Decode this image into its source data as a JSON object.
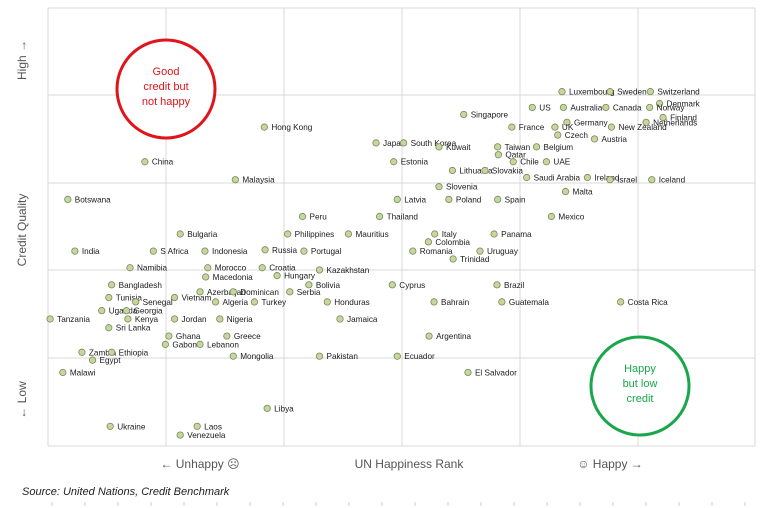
{
  "chart_data": {
    "type": "scatter",
    "xlabel": "UN Happiness Rank",
    "ylabel": "Credit Quality",
    "x_tick_labels": {
      "left": "← Unhappy ☹",
      "right": "☺ Happy →"
    },
    "y_tick_labels": {
      "top": "High →",
      "bottom": "← Low"
    },
    "xlim": [
      0,
      100
    ],
    "ylim": [
      0,
      100
    ],
    "grid": true,
    "annotations": [
      {
        "text": "Good credit but not happy",
        "lines": [
          "Good",
          "credit but",
          "not happy"
        ],
        "color": "#e0141b"
      },
      {
        "text": "Happy but low credit",
        "lines": [
          "Happy",
          "but low",
          "credit"
        ],
        "color": "#1aa64a"
      }
    ],
    "points": [
      {
        "label": "Luxembourg",
        "x": 72.7,
        "y": 80.9
      },
      {
        "label": "Sweden",
        "x": 79.5,
        "y": 80.9
      },
      {
        "label": "Switzerland",
        "x": 85.2,
        "y": 80.9
      },
      {
        "label": "Denmark",
        "x": 86.5,
        "y": 78.2
      },
      {
        "label": "US",
        "x": 68.5,
        "y": 77.3
      },
      {
        "label": "Australia",
        "x": 72.9,
        "y": 77.3
      },
      {
        "label": "Canada",
        "x": 78.9,
        "y": 77.3
      },
      {
        "label": "Norway",
        "x": 85.1,
        "y": 77.3
      },
      {
        "label": "Singapore",
        "x": 58.8,
        "y": 75.7
      },
      {
        "label": "Germany",
        "x": 73.4,
        "y": 73.9
      },
      {
        "label": "Netherlands",
        "x": 84.6,
        "y": 73.9
      },
      {
        "label": "Finland",
        "x": 87.0,
        "y": 75.0
      },
      {
        "label": "Hong Kong",
        "x": 30.6,
        "y": 72.8
      },
      {
        "label": "France",
        "x": 65.6,
        "y": 72.8
      },
      {
        "label": "UK",
        "x": 71.7,
        "y": 72.8
      },
      {
        "label": "New Zealand",
        "x": 79.7,
        "y": 72.8
      },
      {
        "label": "Czech",
        "x": 72.1,
        "y": 71.0
      },
      {
        "label": "Japan",
        "x": 46.4,
        "y": 69.2
      },
      {
        "label": "South Korea",
        "x": 50.3,
        "y": 69.2
      },
      {
        "label": "Austria",
        "x": 77.3,
        "y": 70.1
      },
      {
        "label": "Kuwait",
        "x": 55.3,
        "y": 68.3
      },
      {
        "label": "Taiwan",
        "x": 63.6,
        "y": 68.3
      },
      {
        "label": "Belgium",
        "x": 69.1,
        "y": 68.3
      },
      {
        "label": "China",
        "x": 13.7,
        "y": 64.9
      },
      {
        "label": "Estonia",
        "x": 48.9,
        "y": 64.9
      },
      {
        "label": "Qatar",
        "x": 63.7,
        "y": 66.5
      },
      {
        "label": "Chile",
        "x": 65.8,
        "y": 64.9
      },
      {
        "label": "UAE",
        "x": 70.5,
        "y": 64.9
      },
      {
        "label": "Lithuania",
        "x": 57.2,
        "y": 62.9
      },
      {
        "label": "Slovakia",
        "x": 61.8,
        "y": 62.9
      },
      {
        "label": "Saudi Arabia",
        "x": 67.7,
        "y": 61.3
      },
      {
        "label": "Ireland",
        "x": 76.3,
        "y": 61.3
      },
      {
        "label": "Malaysia",
        "x": 26.5,
        "y": 60.8
      },
      {
        "label": "Slovenia",
        "x": 55.3,
        "y": 59.2
      },
      {
        "label": "Israel",
        "x": 79.5,
        "y": 60.8
      },
      {
        "label": "Iceland",
        "x": 85.4,
        "y": 60.8
      },
      {
        "label": "Malta",
        "x": 73.2,
        "y": 58.1
      },
      {
        "label": "Botswana",
        "x": 2.8,
        "y": 56.3
      },
      {
        "label": "Latvia",
        "x": 49.4,
        "y": 56.3
      },
      {
        "label": "Poland",
        "x": 56.7,
        "y": 56.3
      },
      {
        "label": "Spain",
        "x": 63.6,
        "y": 56.3
      },
      {
        "label": "Peru",
        "x": 36.0,
        "y": 52.4
      },
      {
        "label": "Thailand",
        "x": 46.9,
        "y": 52.4
      },
      {
        "label": "Mexico",
        "x": 71.2,
        "y": 52.4
      },
      {
        "label": "Bulgaria",
        "x": 18.7,
        "y": 48.4
      },
      {
        "label": "Philippines",
        "x": 33.9,
        "y": 48.4
      },
      {
        "label": "Mauritius",
        "x": 42.5,
        "y": 48.4
      },
      {
        "label": "Italy",
        "x": 54.7,
        "y": 48.4
      },
      {
        "label": "Panama",
        "x": 63.1,
        "y": 48.4
      },
      {
        "label": "Colombia",
        "x": 53.8,
        "y": 46.6
      },
      {
        "label": "India",
        "x": 3.8,
        "y": 44.5
      },
      {
        "label": "S Africa",
        "x": 14.9,
        "y": 44.5
      },
      {
        "label": "Indonesia",
        "x": 22.2,
        "y": 44.5
      },
      {
        "label": "Russia",
        "x": 30.7,
        "y": 44.8
      },
      {
        "label": "Portugal",
        "x": 36.2,
        "y": 44.5
      },
      {
        "label": "Romania",
        "x": 51.6,
        "y": 44.5
      },
      {
        "label": "Uruguay",
        "x": 61.1,
        "y": 44.5
      },
      {
        "label": "Trinidad",
        "x": 57.3,
        "y": 42.7
      },
      {
        "label": "Namibia",
        "x": 11.6,
        "y": 40.7
      },
      {
        "label": "Morocco",
        "x": 22.6,
        "y": 40.7
      },
      {
        "label": "Croatia",
        "x": 30.3,
        "y": 40.7
      },
      {
        "label": "Kazakhstan",
        "x": 38.4,
        "y": 40.2
      },
      {
        "label": "Hungary",
        "x": 32.4,
        "y": 38.9
      },
      {
        "label": "Macedonia",
        "x": 22.3,
        "y": 38.6
      },
      {
        "label": "Bangladesh",
        "x": 9.0,
        "y": 36.8
      },
      {
        "label": "Azerbaijan",
        "x": 21.5,
        "y": 35.2
      },
      {
        "label": "Bolivia",
        "x": 36.9,
        "y": 36.8
      },
      {
        "label": "Cyprus",
        "x": 48.7,
        "y": 36.8
      },
      {
        "label": "Brazil",
        "x": 63.5,
        "y": 36.8
      },
      {
        "label": "Dominican",
        "x": 26.2,
        "y": 35.2
      },
      {
        "label": "Serbia",
        "x": 34.2,
        "y": 35.2
      },
      {
        "label": "Tunisia",
        "x": 8.6,
        "y": 33.9
      },
      {
        "label": "Vietnam",
        "x": 17.9,
        "y": 33.9
      },
      {
        "label": "Senegal",
        "x": 12.4,
        "y": 32.9
      },
      {
        "label": "Algeria",
        "x": 23.7,
        "y": 32.9
      },
      {
        "label": "Turkey",
        "x": 29.2,
        "y": 32.9
      },
      {
        "label": "Honduras",
        "x": 39.5,
        "y": 32.9
      },
      {
        "label": "Bahrain",
        "x": 54.6,
        "y": 32.9
      },
      {
        "label": "Guatemala",
        "x": 64.2,
        "y": 32.9
      },
      {
        "label": "Costa Rica",
        "x": 81.0,
        "y": 32.9
      },
      {
        "label": "Uganda",
        "x": 7.6,
        "y": 30.9
      },
      {
        "label": "Georgia",
        "x": 11.1,
        "y": 30.9
      },
      {
        "label": "Tanzania",
        "x": 0.3,
        "y": 29.0
      },
      {
        "label": "Kenya",
        "x": 11.3,
        "y": 29.0
      },
      {
        "label": "Jordan",
        "x": 17.9,
        "y": 29.0
      },
      {
        "label": "Nigeria",
        "x": 24.3,
        "y": 29.0
      },
      {
        "label": "Jamaica",
        "x": 41.3,
        "y": 29.0
      },
      {
        "label": "Sri Lanka",
        "x": 8.6,
        "y": 27.0
      },
      {
        "label": "Ghana",
        "x": 17.1,
        "y": 25.1
      },
      {
        "label": "Greece",
        "x": 25.3,
        "y": 25.1
      },
      {
        "label": "Argentina",
        "x": 53.9,
        "y": 25.1
      },
      {
        "label": "Gabon",
        "x": 16.6,
        "y": 23.2
      },
      {
        "label": "Lebanon",
        "x": 21.5,
        "y": 23.2
      },
      {
        "label": "Zambia",
        "x": 4.8,
        "y": 21.4
      },
      {
        "label": "Ethiopia",
        "x": 9.0,
        "y": 21.4
      },
      {
        "label": "Mongolia",
        "x": 26.2,
        "y": 20.5
      },
      {
        "label": "Pakistan",
        "x": 38.4,
        "y": 20.5
      },
      {
        "label": "Ecuador",
        "x": 49.4,
        "y": 20.5
      },
      {
        "label": "Egypt",
        "x": 6.3,
        "y": 19.6
      },
      {
        "label": "Malawi",
        "x": 2.1,
        "y": 16.8
      },
      {
        "label": "El Salvador",
        "x": 59.4,
        "y": 16.8
      },
      {
        "label": "Libya",
        "x": 31.0,
        "y": 8.6
      },
      {
        "label": "Ukraine",
        "x": 8.8,
        "y": 4.5
      },
      {
        "label": "Laos",
        "x": 21.1,
        "y": 4.5
      },
      {
        "label": "Venezuela",
        "x": 18.7,
        "y": 2.5
      }
    ]
  },
  "source": "Source: United Nations, Credit Benchmark",
  "colors": {
    "point_fill": "#c5d6a0",
    "point_stroke": "#7a8a55",
    "grid": "#d9d9d9",
    "axis_text": "#555555",
    "label_text": "#1a1a1a"
  }
}
